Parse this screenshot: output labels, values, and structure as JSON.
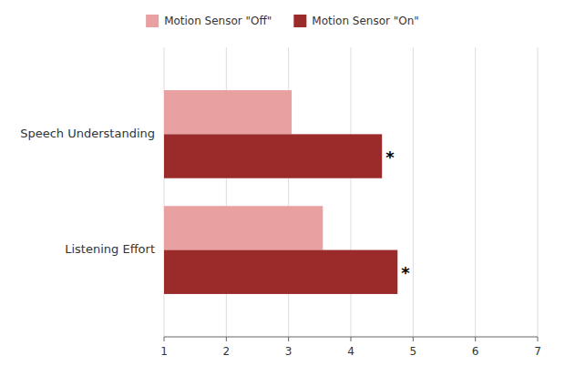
{
  "chart_data": {
    "type": "bar",
    "orientation": "horizontal",
    "categories": [
      "Speech Understanding",
      "Listening Effort"
    ],
    "series": [
      {
        "name": "Motion Sensor \"Off\"",
        "color": "#E8A0A0",
        "values": [
          3.05,
          3.55
        ]
      },
      {
        "name": "Motion Sensor \"On\"",
        "color": "#9B2A2A",
        "values": [
          4.5,
          4.75
        ]
      }
    ],
    "xlim": [
      1,
      7
    ],
    "xticks": [
      1,
      2,
      3,
      4,
      5,
      6,
      7
    ],
    "grid": true,
    "legend": "top",
    "annotations": [
      {
        "text": "*",
        "x": 4.5,
        "category": "Speech Understanding",
        "series": "Motion Sensor \"On\""
      },
      {
        "text": "*",
        "x": 4.75,
        "category": "Listening Effort",
        "series": "Motion Sensor \"On\""
      }
    ]
  }
}
